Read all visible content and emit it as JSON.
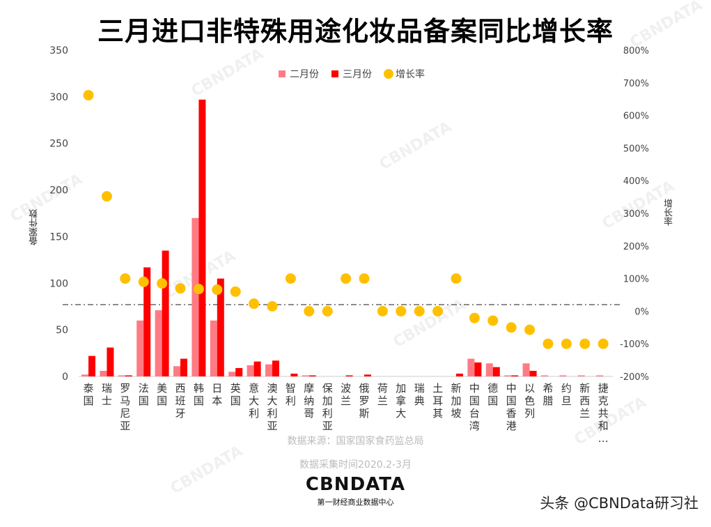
{
  "chart_data": {
    "type": "bar",
    "title": "三月进口非特殊用途化妆品备案同比增长率",
    "categories": [
      "泰国",
      "瑞士",
      "罗马尼亚",
      "法国",
      "美国",
      "西班牙",
      "韩国",
      "日本",
      "英国",
      "意大利",
      "澳大利亚",
      "智利",
      "摩纳哥",
      "保加利亚",
      "波兰",
      "俄罗斯",
      "荷兰",
      "加拿大",
      "瑞典",
      "土耳其",
      "新加坡",
      "中国台湾",
      "德国",
      "中国香港",
      "以色列",
      "希腊",
      "约旦",
      "新西兰",
      "捷克共和…"
    ],
    "series": [
      {
        "name": "二月份",
        "type": "bar",
        "axis": "left",
        "color": "#FF7B84",
        "values": [
          2,
          6,
          1,
          60,
          71,
          11,
          170,
          60,
          5,
          12,
          13,
          0,
          1,
          0,
          0,
          0,
          0,
          0,
          0,
          0,
          0,
          19,
          14,
          1,
          14,
          1,
          1,
          1,
          1
        ]
      },
      {
        "name": "三月份",
        "type": "bar",
        "axis": "left",
        "color": "#FF0000",
        "values": [
          22,
          31,
          1,
          117,
          135,
          19,
          297,
          105,
          9,
          16,
          17,
          3,
          1,
          0,
          1,
          2,
          0,
          0,
          0,
          0,
          3,
          15,
          10,
          1,
          6,
          0,
          0,
          0,
          0
        ]
      },
      {
        "name": "增长率",
        "type": "scatter",
        "axis": "right",
        "color": "#FFC000",
        "values": [
          662,
          352,
          100,
          90,
          85,
          70,
          68,
          66,
          60,
          23,
          15,
          100,
          0,
          0,
          100,
          100,
          0,
          0,
          0,
          0,
          100,
          -21,
          -29,
          -50,
          -57,
          -100,
          -100,
          -100,
          -100
        ]
      }
    ],
    "ylabel": "备案件数",
    "y2label": "增长率",
    "ylim": [
      0,
      350
    ],
    "yticks": [
      "0",
      "50",
      "100",
      "150",
      "200",
      "250",
      "300",
      "350"
    ],
    "y2lim": [
      -200,
      800
    ],
    "y2ticks": [
      "-200%",
      "-100%",
      "0%",
      "100%",
      "200%",
      "300%",
      "400%",
      "500%",
      "600%",
      "700%",
      "800%"
    ],
    "reference_line_pct": 20,
    "legend_position": "top-center",
    "grid": false
  },
  "footer": {
    "source": "数据来源：国家国家食药监总局",
    "period": "数据采集时间2020.2-3月",
    "logo": "CBNDATA",
    "logo_sub": "第一财经商业数据中心",
    "handle": "头条 @CBNData研习社"
  },
  "watermark": "CBNDATA"
}
